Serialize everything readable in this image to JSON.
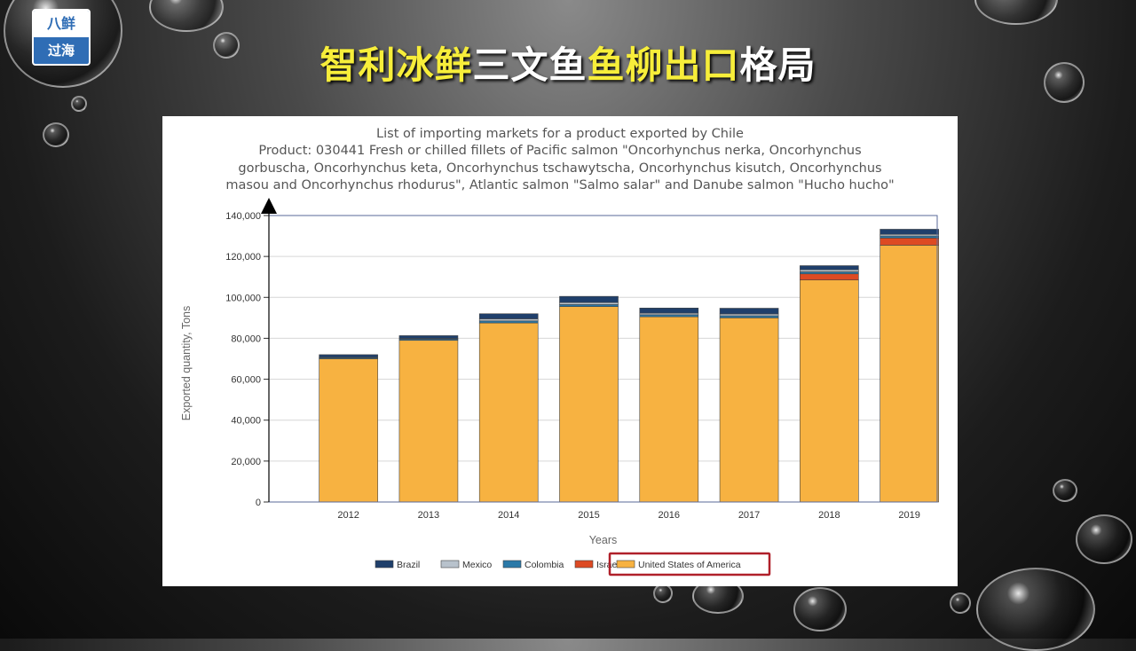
{
  "logo": {
    "top": "八鲜",
    "bottom": "过海"
  },
  "slide_title": {
    "part1": "智利冰鲜",
    "part2": "三文鱼",
    "part3": "鱼柳出口",
    "part4": "格局"
  },
  "chart_data": {
    "type": "bar",
    "stacked": true,
    "title_lines": [
      "List of importing markets for a product exported by Chile",
      "Product: 030441 Fresh or chilled fillets of Pacific salmon \"Oncorhynchus nerka, Oncorhynchus",
      "gorbuscha, Oncorhynchus keta, Oncorhynchus tschawytscha, Oncorhynchus kisutch, Oncorhynchus",
      "masou and Oncorhynchus rhodurus\", Atlantic salmon \"Salmo salar\" and Danube salmon \"Hucho hucho\""
    ],
    "xlabel": "Years",
    "ylabel": "Exported quantity, Tons",
    "ylim": [
      0,
      140000
    ],
    "yticks": [
      "0",
      "20,000",
      "40,000",
      "60,000",
      "80,000",
      "100,000",
      "120,000",
      "140,000"
    ],
    "categories": [
      "2012",
      "2013",
      "2014",
      "2015",
      "2016",
      "2017",
      "2018",
      "2019"
    ],
    "grid": true,
    "legend_position": "bottom",
    "series": [
      {
        "name": "United States of America",
        "color": "#f7b241",
        "values": [
          70000,
          79000,
          87500,
          95500,
          90500,
          90000,
          108500,
          125500
        ]
      },
      {
        "name": "Israel",
        "color": "#dd4a23",
        "values": [
          0,
          0,
          0,
          0,
          0,
          0,
          3000,
          3500
        ]
      },
      {
        "name": "Colombia",
        "color": "#2a79a8",
        "values": [
          500,
          600,
          1000,
          1000,
          1000,
          1000,
          1000,
          1000
        ]
      },
      {
        "name": "Mexico",
        "color": "#b8c2cc",
        "values": [
          200,
          300,
          1000,
          1000,
          800,
          900,
          1000,
          800
        ]
      },
      {
        "name": "Brazil",
        "color": "#1f3f6b",
        "values": [
          1300,
          1400,
          2500,
          3000,
          2500,
          2800,
          2000,
          2500
        ]
      }
    ],
    "legend_order": [
      "Brazil",
      "Mexico",
      "Colombia",
      "Israel",
      "United States of America"
    ],
    "highlight_legend": "United States of America",
    "highlight_color": "#b0202a"
  }
}
